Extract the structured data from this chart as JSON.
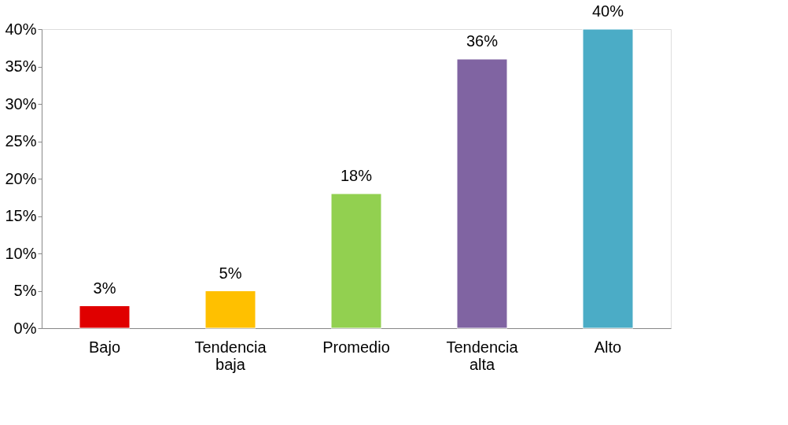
{
  "chart_data": {
    "type": "bar",
    "categories": [
      "Bajo",
      "Tendencia baja",
      "Promedio",
      "Tendencia alta",
      "Alto"
    ],
    "values": [
      3,
      5,
      18,
      36,
      40
    ],
    "colors": [
      "#e00000",
      "#ffc000",
      "#92d050",
      "#8064a2",
      "#4bacc6"
    ],
    "value_labels": [
      "3%",
      "5%",
      "18%",
      "36%",
      "40%"
    ],
    "ylim": [
      0,
      40
    ],
    "yticks": [
      {
        "value": 0,
        "label": "0%"
      },
      {
        "value": 5,
        "label": "5%"
      },
      {
        "value": 10,
        "label": "10%"
      },
      {
        "value": 15,
        "label": "15%"
      },
      {
        "value": 20,
        "label": "20%"
      },
      {
        "value": 25,
        "label": "25%"
      },
      {
        "value": 30,
        "label": "30%"
      },
      {
        "value": 35,
        "label": "35%"
      },
      {
        "value": 40,
        "label": "40%"
      }
    ],
    "grid": false,
    "legend": false
  }
}
